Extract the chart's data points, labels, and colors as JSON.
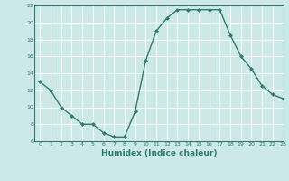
{
  "x": [
    0,
    1,
    2,
    3,
    4,
    5,
    6,
    7,
    8,
    9,
    10,
    11,
    12,
    13,
    14,
    15,
    16,
    17,
    18,
    19,
    20,
    21,
    22,
    23
  ],
  "y": [
    13,
    12,
    10,
    9,
    8,
    8,
    7,
    6.5,
    6.5,
    9.5,
    15.5,
    19,
    20.5,
    21.5,
    21.5,
    21.5,
    21.5,
    21.5,
    18.5,
    16,
    14.5,
    12.5,
    11.5,
    11
  ],
  "line_color": "#2e7d6e",
  "marker": "D",
  "marker_size": 2,
  "bg_color": "#cce8e8",
  "grid_color": "#b0d4d4",
  "xlabel": "Humidex (Indice chaleur)",
  "ylim": [
    6,
    22
  ],
  "xlim": [
    -0.5,
    23
  ],
  "yticks": [
    6,
    8,
    10,
    12,
    14,
    16,
    18,
    20,
    22
  ],
  "xticks": [
    0,
    1,
    2,
    3,
    4,
    5,
    6,
    7,
    8,
    9,
    10,
    11,
    12,
    13,
    14,
    15,
    16,
    17,
    18,
    19,
    20,
    21,
    22,
    23
  ]
}
